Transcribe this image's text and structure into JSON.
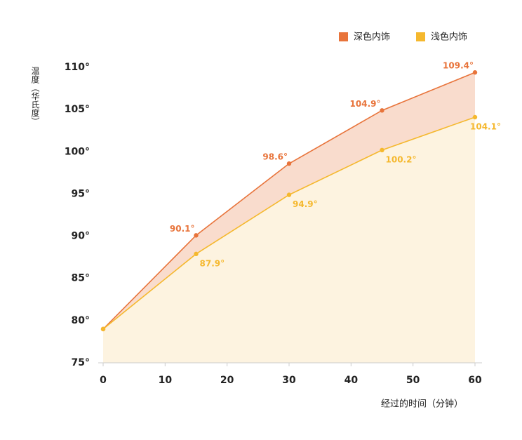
{
  "chart_data": {
    "type": "area-line",
    "x_label": "经过的时间（分钟）",
    "y_label": "温度（华氏度）",
    "x": [
      0,
      15,
      30,
      45,
      60
    ],
    "series": [
      {
        "name": "深色内饰",
        "color": "#e8743b",
        "fill": "#f9dccd",
        "values": [
          79,
          90.1,
          98.6,
          104.9,
          109.4
        ],
        "value_labels": [
          null,
          "90.1°",
          "98.6°",
          "104.9°",
          "109.4°"
        ]
      },
      {
        "name": "浅色内饰",
        "color": "#f5b82e",
        "fill": "#fdf3e0",
        "values": [
          79,
          87.9,
          94.9,
          100.2,
          104.1
        ],
        "value_labels": [
          null,
          "87.9°",
          "94.9°",
          "100.2°",
          "104.1°"
        ]
      }
    ],
    "xlim": [
      0,
      60
    ],
    "xticks": [
      0,
      10,
      20,
      30,
      40,
      50,
      60
    ],
    "ylim": [
      75,
      110
    ],
    "yticks": [
      {
        "value": 75,
        "label": "75°"
      },
      {
        "value": 80,
        "label": "80°"
      },
      {
        "value": 85,
        "label": "85°"
      },
      {
        "value": 90,
        "label": "90°"
      },
      {
        "value": 95,
        "label": "95°"
      },
      {
        "value": 100,
        "label": "100°"
      },
      {
        "value": 105,
        "label": "105°"
      },
      {
        "value": 110,
        "label": "110°"
      }
    ],
    "legend": "top-right"
  }
}
